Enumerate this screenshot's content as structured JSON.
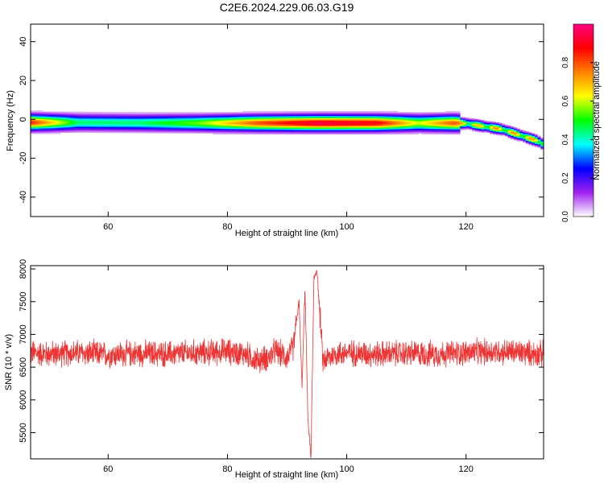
{
  "title": "C2E6.2024.229.06.03.G19",
  "chart_data": [
    {
      "type": "heatmap",
      "xlabel": "Height of straight line (km)",
      "ylabel": "Frequency (Hz)",
      "xlim": [
        47,
        133
      ],
      "ylim": [
        -50,
        49
      ],
      "xticks": [
        60,
        80,
        100,
        120
      ],
      "yticks": [
        -40,
        -20,
        0,
        20,
        40
      ],
      "colorbar": {
        "label": "Normalized spectral amplitude",
        "range": [
          0,
          1
        ],
        "ticks": [
          "0.0",
          "0.2",
          "0.4",
          "0.6",
          "0.8"
        ],
        "colors": [
          "#ffffff",
          "#a020f0",
          "#0000ff",
          "#00ffff",
          "#00ff00",
          "#ffff00",
          "#ff8000",
          "#ff0000",
          "#ff0080"
        ]
      },
      "ridge": {
        "height_km": [
          47,
          55,
          65,
          75,
          85,
          95,
          105,
          112,
          118,
          120,
          122,
          124,
          126,
          128,
          130,
          132,
          133
        ],
        "frequency_hz": [
          -1.5,
          -1.5,
          -1.7,
          -1.8,
          -1.8,
          -1.8,
          -1.8,
          -1.8,
          -1.8,
          -2,
          -3,
          -4,
          -5,
          -7,
          -9,
          -11,
          -13
        ],
        "peak_amplitude": [
          0.85,
          0.45,
          0.45,
          0.55,
          0.8,
          0.95,
          0.9,
          0.6,
          0.8,
          0.7,
          0.7,
          0.75,
          0.75,
          0.75,
          0.75,
          0.75,
          0.75
        ]
      }
    },
    {
      "type": "line",
      "xlabel": "Height of straight line (km)",
      "ylabel": "SNR (10 * v/v)",
      "xlim": [
        47,
        133
      ],
      "ylim": [
        5100,
        8050
      ],
      "xticks": [
        60,
        80,
        100,
        120
      ],
      "yticks": [
        5500,
        6000,
        6500,
        7000,
        7500,
        8000
      ],
      "series": [
        {
          "color": "#ee3333",
          "x": [
            47,
            50,
            55,
            60,
            65,
            70,
            75,
            80,
            83,
            85,
            87,
            88,
            90,
            91,
            92,
            92.5,
            93,
            93.5,
            94,
            94.5,
            95,
            96,
            98,
            100,
            105,
            110,
            115,
            120,
            125,
            130,
            133
          ],
          "y": [
            6720,
            6700,
            6720,
            6690,
            6710,
            6700,
            6720,
            6740,
            6700,
            6600,
            6650,
            6750,
            6650,
            6800,
            7500,
            6200,
            7700,
            5700,
            5100,
            7850,
            8000,
            6600,
            6700,
            6720,
            6700,
            6710,
            6700,
            6720,
            6740,
            6720,
            6700
          ],
          "noise_amplitude": 160
        }
      ]
    }
  ]
}
